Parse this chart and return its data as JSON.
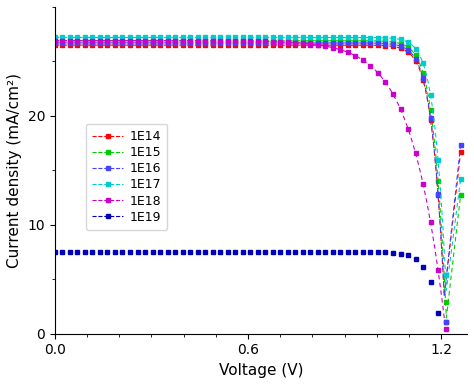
{
  "xlabel": "Voltage (V)",
  "ylabel": "Current density (mA/cm²)",
  "xlim": [
    0.0,
    1.28
  ],
  "ylim": [
    0,
    30
  ],
  "xticks": [
    0.0,
    0.6,
    1.2
  ],
  "yticks": [
    0,
    10,
    20
  ],
  "series": [
    {
      "label": "1E14",
      "color": "#ff0000",
      "Jsc": 26.5,
      "Voc": 1.215,
      "n": 1.1,
      "Rs": 0.5
    },
    {
      "label": "1E15",
      "color": "#00cc00",
      "Jsc": 26.9,
      "Voc": 1.218,
      "n": 1.1,
      "Rs": 0.5
    },
    {
      "label": "1E16",
      "color": "#4444ff",
      "Jsc": 26.7,
      "Voc": 1.215,
      "n": 1.1,
      "Rs": 0.5
    },
    {
      "label": "1E17",
      "color": "#00cccc",
      "Jsc": 27.2,
      "Voc": 1.222,
      "n": 1.05,
      "Rs": 0.5
    },
    {
      "label": "1E18",
      "color": "#cc00cc",
      "Jsc": 26.9,
      "Voc": 1.215,
      "n": 3.5,
      "Rs": 0.5
    },
    {
      "label": "1E19",
      "color": "#0000bb",
      "Jsc": 7.5,
      "Voc": 1.2,
      "n": 1.2,
      "Rs": 0.5
    }
  ],
  "figsize": [
    4.74,
    3.85
  ],
  "dpi": 100
}
